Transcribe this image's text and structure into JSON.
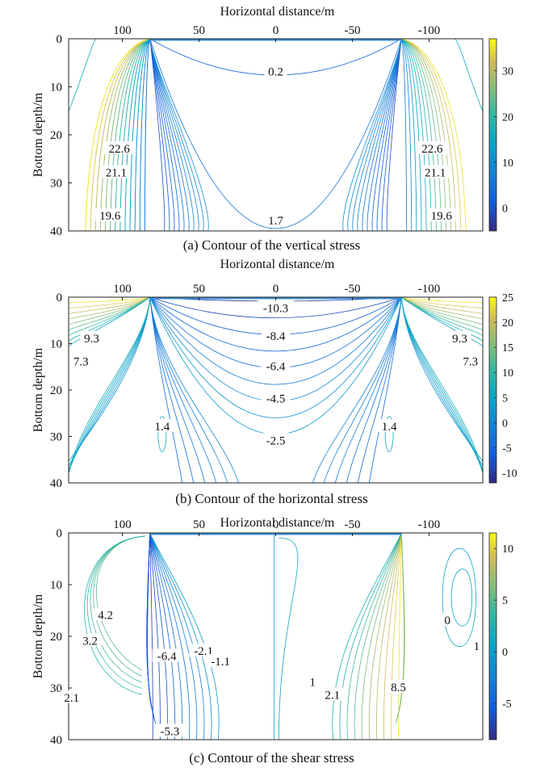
{
  "chart_data": [
    {
      "type": "contour",
      "title": "Horizontal distance/m",
      "caption": "(a) Contour of the vertical stress",
      "xlabel": "Horizontal distance/m",
      "ylabel": "Bottom depth/m",
      "x_ticks": [
        "100",
        "50",
        "0",
        "-50",
        "-100"
      ],
      "x_tick_values": [
        100,
        50,
        0,
        -50,
        -100
      ],
      "y_ticks": [
        "0",
        "10",
        "20",
        "30",
        "40"
      ],
      "y_tick_values": [
        0,
        10,
        20,
        30,
        40
      ],
      "xlim": [
        135,
        -135
      ],
      "ylim": [
        0,
        40
      ],
      "colorbar": {
        "ticks": [
          "30",
          "20",
          "10",
          "0"
        ],
        "tick_values": [
          30,
          20,
          10,
          0
        ],
        "range": [
          -5,
          37
        ]
      },
      "labels": [
        {
          "text": "0.2",
          "x": 0,
          "y": 7,
          "color": "#3a3ad0"
        },
        {
          "text": "1.7",
          "x": 0,
          "y": 38,
          "color": "#3a3ad0"
        },
        {
          "text": "22.6",
          "x": 102,
          "y": 23,
          "color": "#4db87a"
        },
        {
          "text": "21.1",
          "x": 104,
          "y": 28,
          "color": "#3fa88a"
        },
        {
          "text": "19.6",
          "x": 108,
          "y": 37,
          "color": "#35a09a"
        },
        {
          "text": "22.6",
          "x": -102,
          "y": 23,
          "color": "#4db87a"
        },
        {
          "text": "21.1",
          "x": -104,
          "y": 28,
          "color": "#3fa88a"
        },
        {
          "text": "19.6",
          "x": -108,
          "y": 37,
          "color": "#35a09a"
        }
      ]
    },
    {
      "type": "contour",
      "title": "Horizontal distance/m",
      "caption": "(b) Contour of the horizontal stress",
      "xlabel": "Horizontal distance/m",
      "ylabel": "Bottom depth/m",
      "x_ticks": [
        "100",
        "50",
        "0",
        "-50",
        "-100"
      ],
      "x_tick_values": [
        100,
        50,
        0,
        -50,
        -100
      ],
      "y_ticks": [
        "0",
        "10",
        "20",
        "30",
        "40"
      ],
      "y_tick_values": [
        0,
        10,
        20,
        30,
        40
      ],
      "xlim": [
        135,
        -135
      ],
      "ylim": [
        0,
        40
      ],
      "colorbar": {
        "ticks": [
          "25",
          "20",
          "15",
          "10",
          "5",
          "0",
          "-5",
          "-10"
        ],
        "tick_values": [
          25,
          20,
          15,
          10,
          5,
          0,
          -5,
          -10
        ],
        "range": [
          -12,
          25
        ]
      },
      "labels": [
        {
          "text": "-10.3",
          "x": 0,
          "y": 2.5,
          "color": "#3a3ad0"
        },
        {
          "text": "-8.4",
          "x": 0,
          "y": 8.5,
          "color": "#3f4fd8"
        },
        {
          "text": "-6.4",
          "x": 0,
          "y": 15,
          "color": "#4466dc"
        },
        {
          "text": "-4.5",
          "x": 0,
          "y": 22,
          "color": "#3b7fd8"
        },
        {
          "text": "-2.5",
          "x": 0,
          "y": 31,
          "color": "#2f95c8"
        },
        {
          "text": "9.3",
          "x": 120,
          "y": 9,
          "color": "#4db87a"
        },
        {
          "text": "7.3",
          "x": 127,
          "y": 14,
          "color": "#3fa88a"
        },
        {
          "text": "1.4",
          "x": 74,
          "y": 28,
          "color": "#2ea2b3"
        },
        {
          "text": "9.3",
          "x": -120,
          "y": 9,
          "color": "#4db87a"
        },
        {
          "text": "7.3",
          "x": -127,
          "y": 14,
          "color": "#3fa88a"
        },
        {
          "text": "1.4",
          "x": -74,
          "y": 28,
          "color": "#2ea2b3"
        }
      ]
    },
    {
      "type": "contour",
      "title": "Horizontal distance/m",
      "caption": "(c) Contour of the shear stress",
      "xlabel": "Horizontal distance/m",
      "ylabel": "Bottom depth/m",
      "x_ticks": [
        "100",
        "50",
        "0",
        "-50",
        "-100"
      ],
      "x_tick_values": [
        100,
        50,
        0,
        -50,
        -100
      ],
      "y_ticks": [
        "0",
        "10",
        "20",
        "30",
        "40"
      ],
      "y_tick_values": [
        0,
        10,
        20,
        30,
        40
      ],
      "xlim": [
        135,
        -135
      ],
      "ylim": [
        0,
        40
      ],
      "colorbar": {
        "ticks": [
          "10",
          "5",
          "0",
          "-5"
        ],
        "tick_values": [
          10,
          5,
          0,
          -5
        ],
        "range": [
          -8.5,
          11.5
        ]
      },
      "labels": [
        {
          "text": "4.2",
          "x": 111,
          "y": 16,
          "color": "#5cbf6a"
        },
        {
          "text": "3.2",
          "x": 121,
          "y": 21,
          "color": "#4db87a"
        },
        {
          "text": "2.1",
          "x": 133,
          "y": 32,
          "color": "#3fa88a"
        },
        {
          "text": "-6.4",
          "x": 71,
          "y": 24,
          "color": "#3a3ad0"
        },
        {
          "text": "-2.1",
          "x": 47,
          "y": 23,
          "color": "#3f70d8"
        },
        {
          "text": "-1.1",
          "x": 36,
          "y": 25,
          "color": "#3a88d0"
        },
        {
          "text": "-5.3",
          "x": 69,
          "y": 38.5,
          "color": "#3a3ad0"
        },
        {
          "text": "1",
          "x": -24,
          "y": 29,
          "color": "#2ea2b3"
        },
        {
          "text": "2.1",
          "x": -37,
          "y": 31.5,
          "color": "#3fa88a"
        },
        {
          "text": "8.5",
          "x": -80,
          "y": 30,
          "color": "#d9c040"
        },
        {
          "text": "0",
          "x": -112,
          "y": 17,
          "color": "#2f95c8"
        },
        {
          "text": "1",
          "x": -131,
          "y": 22,
          "color": "#2ea2b3"
        }
      ]
    }
  ]
}
